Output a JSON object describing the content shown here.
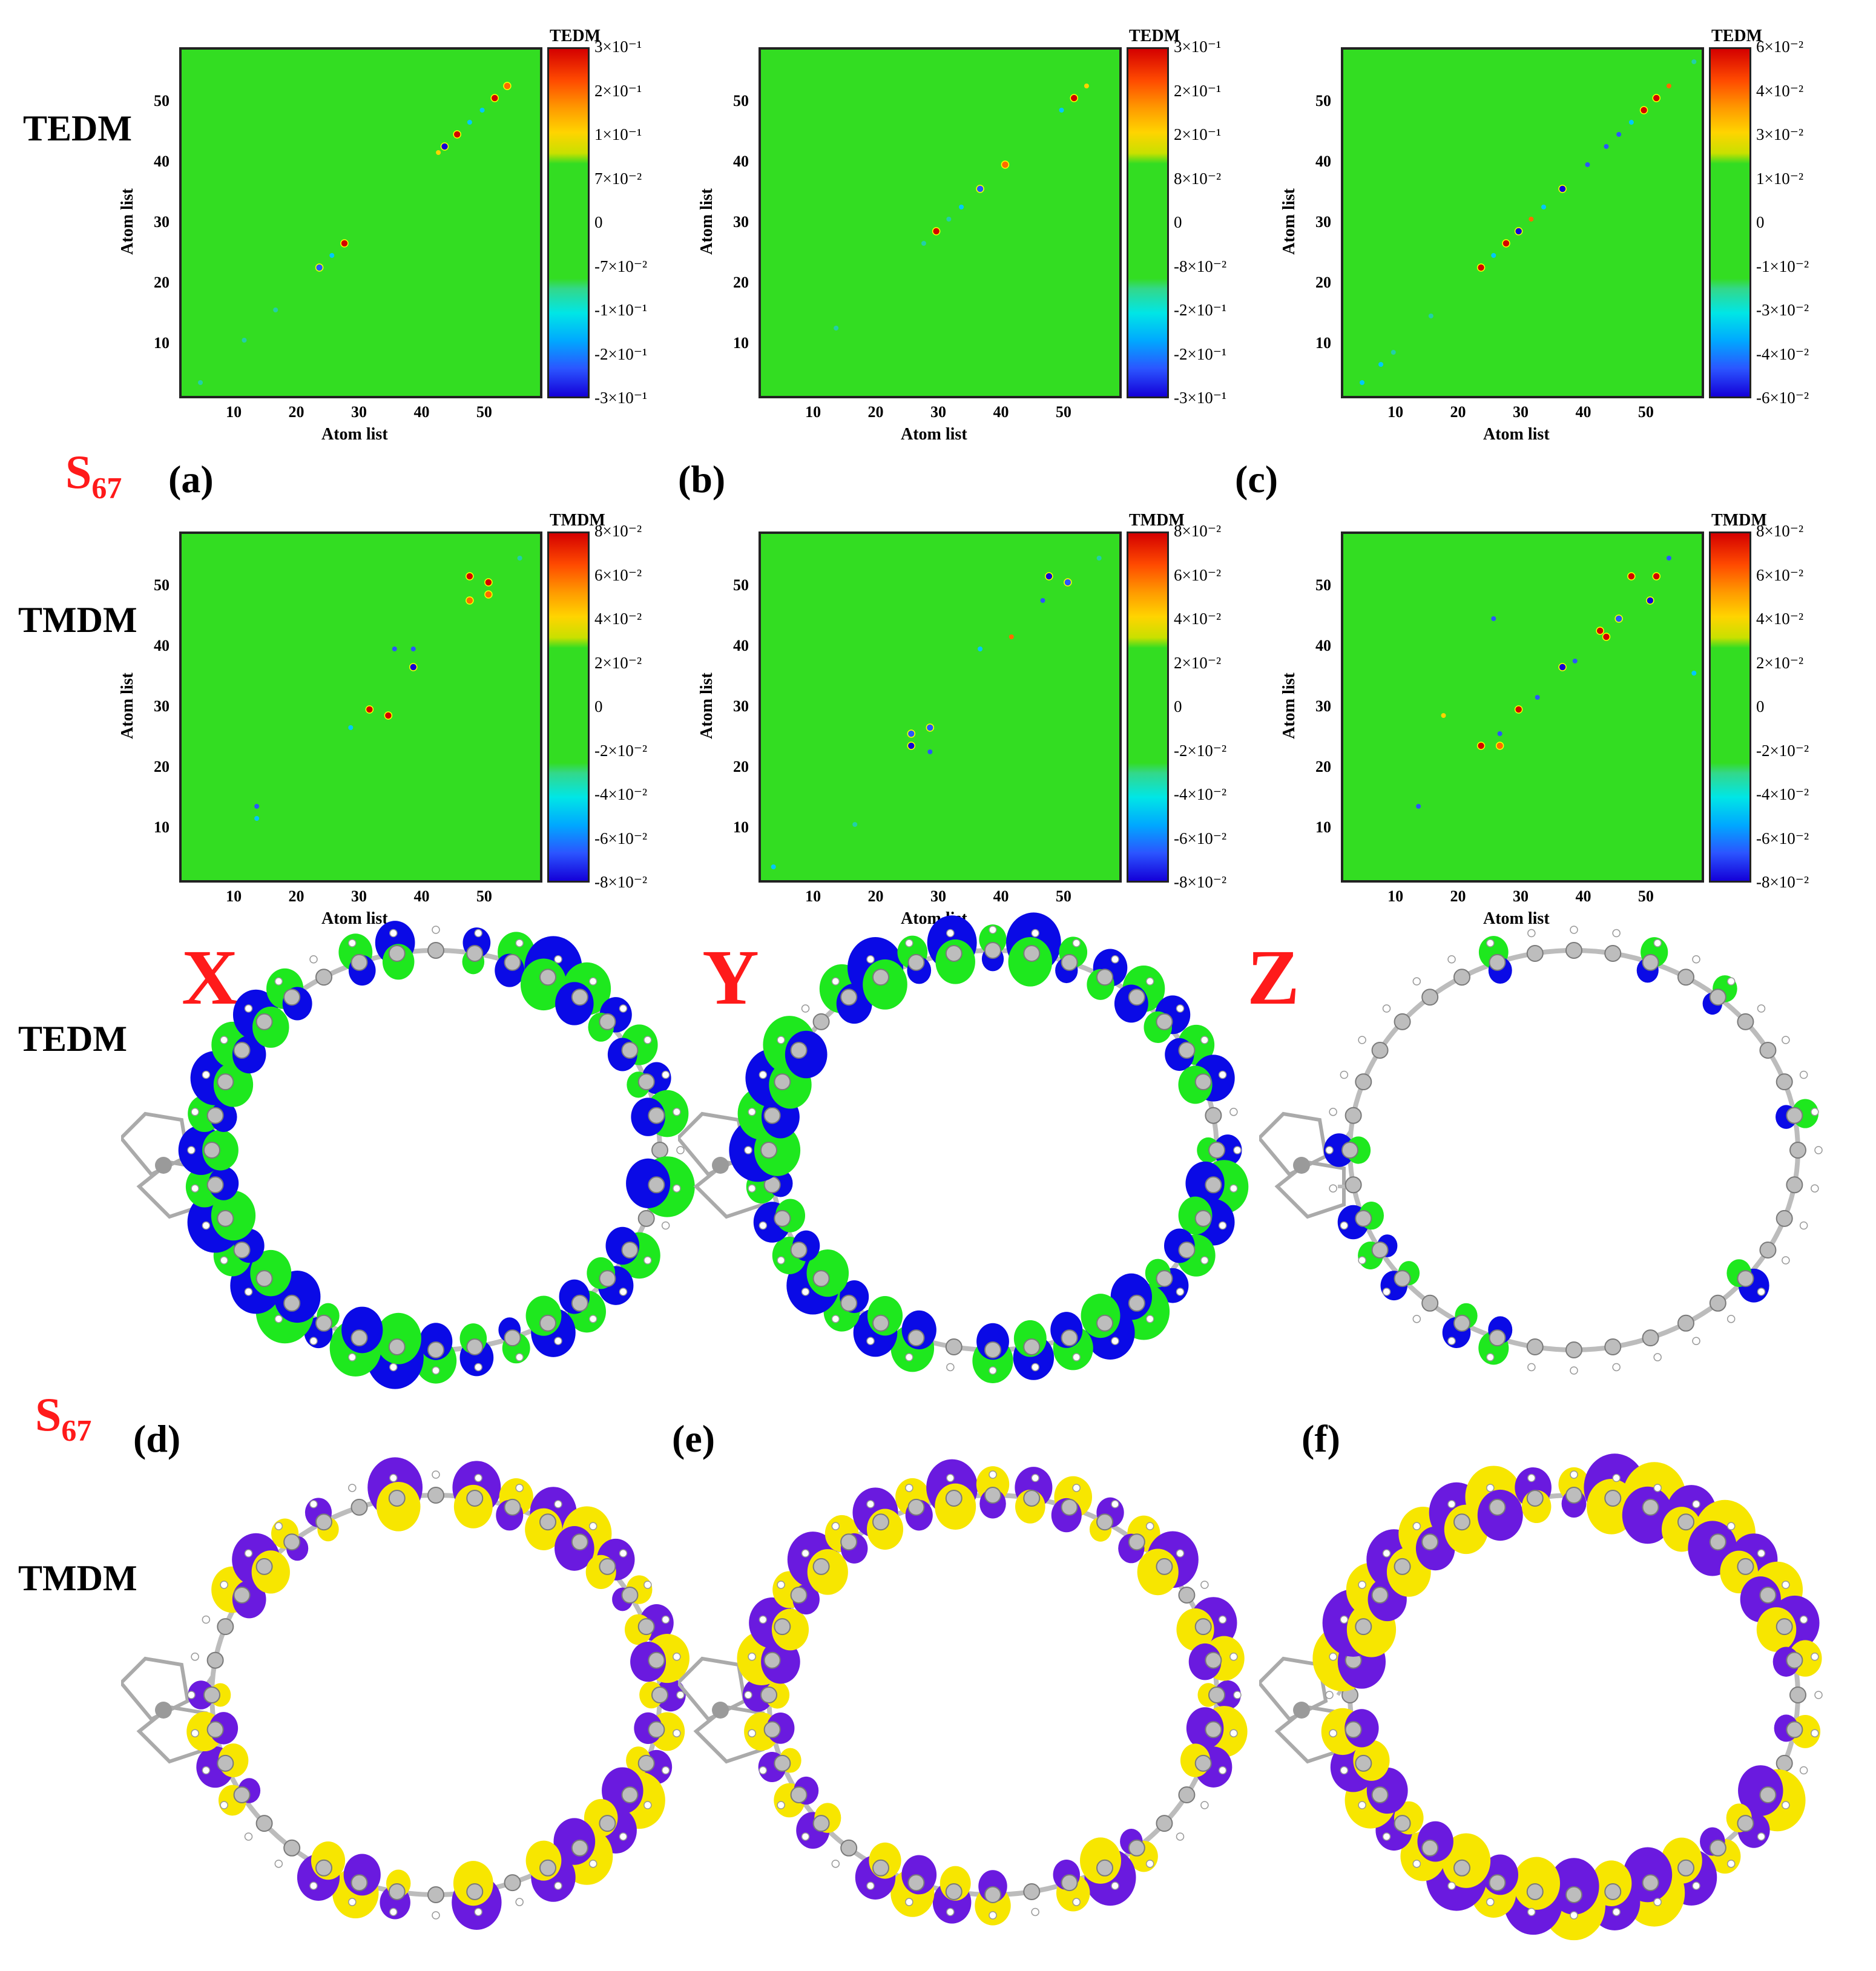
{
  "row_labels": {
    "tedm_heatmap": "TEDM",
    "tmdm_heatmap": "TMDM",
    "tedm_iso": "TEDM",
    "tmdm_iso": "TMDM"
  },
  "state_label": {
    "main": "S",
    "sub": "67"
  },
  "state_label_2": {
    "main": "S",
    "sub": "67"
  },
  "panel_tags": [
    "(a)",
    "(b)",
    "(c)",
    "(d)",
    "(e)",
    "(f)"
  ],
  "axis_labels": [
    "X",
    "Y",
    "Z"
  ],
  "colors": {
    "positive_tedm": "#00ee00",
    "negative_tedm": "#0000ee",
    "positive_tmdm": "#ffee00",
    "negative_tmdm": "#6a1adf"
  },
  "chart_data": [
    {
      "type": "heatmap",
      "id": "a",
      "xlabel": "Atom list",
      "ylabel": "Atom list",
      "x_ticks": [
        "10",
        "20",
        "30",
        "40",
        "50"
      ],
      "y_ticks": [
        "10",
        "20",
        "30",
        "40",
        "50"
      ],
      "xlim": [
        1,
        59
      ],
      "ylim": [
        1,
        59
      ],
      "colorbar_title": "TEDM",
      "colorbar_ticks": [
        "3×10⁻¹",
        "2×10⁻¹",
        "1×10⁻¹",
        "7×10⁻²",
        "0",
        "-7×10⁻²",
        "-1×10⁻¹",
        "-2×10⁻¹",
        "-3×10⁻¹"
      ],
      "points": [
        [
          4,
          4,
          0.01
        ],
        [
          11,
          11,
          0.05
        ],
        [
          16,
          16,
          -0.05
        ],
        [
          23,
          23,
          -0.15
        ],
        [
          25,
          25,
          -0.06
        ],
        [
          27,
          27,
          0.2
        ],
        [
          42,
          42,
          0.1
        ],
        [
          43,
          43,
          -0.2
        ],
        [
          45,
          45,
          0.25
        ],
        [
          47,
          47,
          -0.08
        ],
        [
          49,
          49,
          -0.06
        ],
        [
          51,
          51,
          0.2
        ],
        [
          53,
          53,
          0.15
        ]
      ]
    },
    {
      "type": "heatmap",
      "id": "b",
      "xlabel": "Atom list",
      "ylabel": "Atom list",
      "x_ticks": [
        "10",
        "20",
        "30",
        "40",
        "50"
      ],
      "y_ticks": [
        "10",
        "20",
        "30",
        "40",
        "50"
      ],
      "xlim": [
        1,
        59
      ],
      "ylim": [
        1,
        59
      ],
      "colorbar_title": "TEDM",
      "colorbar_ticks": [
        "3×10⁻¹",
        "2×10⁻¹",
        "2×10⁻¹",
        "8×10⁻²",
        "0",
        "-8×10⁻²",
        "-2×10⁻¹",
        "-2×10⁻¹",
        "-3×10⁻¹"
      ],
      "points": [
        [
          13,
          13,
          0.01
        ],
        [
          27,
          27,
          0.05
        ],
        [
          29,
          29,
          0.2
        ],
        [
          31,
          31,
          -0.05
        ],
        [
          33,
          33,
          -0.08
        ],
        [
          36,
          36,
          -0.15
        ],
        [
          40,
          40,
          0.15
        ],
        [
          49,
          49,
          -0.1
        ],
        [
          51,
          51,
          0.25
        ],
        [
          53,
          53,
          0.1
        ]
      ]
    },
    {
      "type": "heatmap",
      "id": "c",
      "xlabel": "Atom list",
      "ylabel": "Atom list",
      "x_ticks": [
        "10",
        "20",
        "30",
        "40",
        "50"
      ],
      "y_ticks": [
        "10",
        "20",
        "30",
        "40",
        "50"
      ],
      "xlim": [
        1,
        59
      ],
      "ylim": [
        1,
        59
      ],
      "colorbar_title": "TEDM",
      "colorbar_ticks": [
        "6×10⁻²",
        "4×10⁻²",
        "3×10⁻²",
        "1×10⁻²",
        "0",
        "-1×10⁻²",
        "-3×10⁻²",
        "-4×10⁻²",
        "-6×10⁻²"
      ],
      "points": [
        [
          4,
          4,
          -0.02
        ],
        [
          7,
          7,
          -0.015
        ],
        [
          9,
          9,
          -0.01
        ],
        [
          15,
          15,
          0.01
        ],
        [
          23,
          23,
          0.05
        ],
        [
          25,
          25,
          -0.02
        ],
        [
          27,
          27,
          0.04
        ],
        [
          29,
          29,
          -0.06
        ],
        [
          31,
          31,
          0.03
        ],
        [
          33,
          33,
          -0.02
        ],
        [
          36,
          36,
          -0.06
        ],
        [
          40,
          40,
          -0.03
        ],
        [
          43,
          43,
          -0.03
        ],
        [
          45,
          45,
          -0.03
        ],
        [
          47,
          47,
          -0.02
        ],
        [
          49,
          49,
          0.05
        ],
        [
          51,
          51,
          0.05
        ],
        [
          53,
          53,
          0.03
        ],
        [
          57,
          57,
          -0.01
        ]
      ]
    },
    {
      "type": "heatmap",
      "id": "tmdm_x",
      "xlabel": "Atom list",
      "ylabel": "Atom list",
      "x_ticks": [
        "10",
        "20",
        "30",
        "40",
        "50"
      ],
      "y_ticks": [
        "10",
        "20",
        "30",
        "40",
        "50"
      ],
      "xlim": [
        1,
        59
      ],
      "ylim": [
        1,
        59
      ],
      "colorbar_title": "TMDM",
      "colorbar_ticks": [
        "8×10⁻²",
        "6×10⁻²",
        "4×10⁻²",
        "2×10⁻²",
        "0",
        "-2×10⁻²",
        "-4×10⁻²",
        "-6×10⁻²",
        "-8×10⁻²"
      ],
      "points": [
        [
          13,
          14,
          -0.03
        ],
        [
          13,
          12,
          -0.02
        ],
        [
          28,
          27,
          -0.02
        ],
        [
          31,
          30,
          0.07
        ],
        [
          34,
          29,
          0.05
        ],
        [
          35,
          40,
          -0.03
        ],
        [
          38,
          37,
          -0.07
        ],
        [
          38,
          40,
          -0.03
        ],
        [
          47,
          52,
          0.06
        ],
        [
          50,
          51,
          0.07
        ],
        [
          47,
          48,
          0.04
        ],
        [
          50,
          49,
          0.04
        ],
        [
          55,
          55,
          -0.01
        ]
      ]
    },
    {
      "type": "heatmap",
      "id": "tmdm_y",
      "xlabel": "Atom list",
      "ylabel": "Atom list",
      "x_ticks": [
        "10",
        "20",
        "30",
        "40",
        "50"
      ],
      "y_ticks": [
        "10",
        "20",
        "30",
        "40",
        "50"
      ],
      "xlim": [
        1,
        59
      ],
      "ylim": [
        1,
        59
      ],
      "colorbar_title": "TMDM",
      "colorbar_ticks": [
        "8×10⁻²",
        "6×10⁻²",
        "4×10⁻²",
        "2×10⁻²",
        "0",
        "-2×10⁻²",
        "-4×10⁻²",
        "-6×10⁻²",
        "-8×10⁻²"
      ],
      "points": [
        [
          3,
          4,
          -0.02
        ],
        [
          16,
          11,
          0.01
        ],
        [
          25,
          24,
          -0.07
        ],
        [
          25,
          26,
          -0.04
        ],
        [
          28,
          27,
          -0.04
        ],
        [
          28,
          23,
          -0.03
        ],
        [
          36,
          40,
          -0.02
        ],
        [
          41,
          42,
          0.03
        ],
        [
          46,
          48,
          -0.03
        ],
        [
          47,
          52,
          -0.06
        ],
        [
          50,
          51,
          -0.04
        ],
        [
          55,
          55,
          -0.01
        ]
      ]
    },
    {
      "type": "heatmap",
      "id": "tmdm_z",
      "xlabel": "Atom list",
      "ylabel": "Atom list",
      "x_ticks": [
        "10",
        "20",
        "30",
        "40",
        "50"
      ],
      "y_ticks": [
        "10",
        "20",
        "30",
        "40",
        "50"
      ],
      "xlim": [
        1,
        59
      ],
      "ylim": [
        1,
        59
      ],
      "colorbar_title": "TMDM",
      "colorbar_ticks": [
        "8×10⁻²",
        "6×10⁻²",
        "4×10⁻²",
        "2×10⁻²",
        "0",
        "-2×10⁻²",
        "-4×10⁻²",
        "-6×10⁻²",
        "-8×10⁻²"
      ],
      "points": [
        [
          13,
          14,
          -0.03
        ],
        [
          23,
          24,
          0.07
        ],
        [
          26,
          24,
          0.04
        ],
        [
          26,
          26,
          -0.03
        ],
        [
          29,
          30,
          0.07
        ],
        [
          32,
          32,
          -0.03
        ],
        [
          36,
          37,
          -0.07
        ],
        [
          38,
          38,
          -0.03
        ],
        [
          43,
          42,
          0.07
        ],
        [
          42,
          43,
          0.05
        ],
        [
          45,
          45,
          -0.04
        ],
        [
          47,
          52,
          0.06
        ],
        [
          51,
          52,
          0.07
        ],
        [
          50,
          48,
          -0.05
        ],
        [
          53,
          55,
          -0.03
        ],
        [
          57,
          36,
          -0.02
        ],
        [
          25,
          45,
          -0.03
        ],
        [
          17,
          29,
          0.02
        ]
      ]
    }
  ]
}
